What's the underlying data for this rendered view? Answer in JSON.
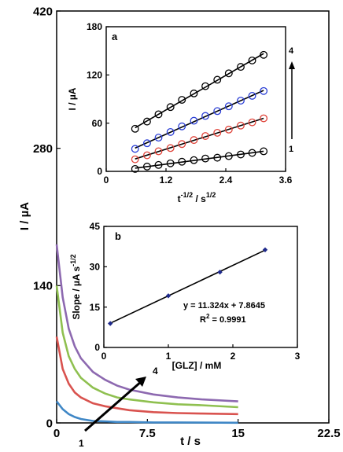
{
  "chart_data": [
    {
      "id": "main",
      "type": "line",
      "xlabel": "t / s",
      "ylabel": "I / µA",
      "xlim": [
        0,
        22.5
      ],
      "ylim": [
        0,
        420
      ],
      "xticks": [
        "0",
        "7.5",
        "15",
        "22.5"
      ],
      "yticks": [
        "0",
        "140",
        "280",
        "420"
      ],
      "x": [
        0,
        0.5,
        1,
        1.5,
        2,
        3,
        4,
        5,
        6,
        8,
        10,
        12,
        15
      ],
      "series": [
        {
          "label": "1",
          "color": "#3f87c6",
          "values": [
            22,
            14,
            9,
            6,
            4,
            2,
            1.5,
            1,
            1,
            0.5,
            0.5,
            0.3,
            0.2
          ]
        },
        {
          "label": "",
          "color": "#d9534f",
          "values": [
            88,
            55,
            40,
            31,
            26,
            20,
            17,
            15,
            13,
            11,
            10,
            9.5,
            9
          ]
        },
        {
          "label": "",
          "color": "#8fc050",
          "values": [
            140,
            92,
            68,
            55,
            46,
            36,
            30,
            26,
            24,
            21,
            19,
            18,
            16
          ]
        },
        {
          "label": "4",
          "color": "#8d69b0",
          "values": [
            182,
            128,
            96,
            78,
            66,
            52,
            44,
            38,
            34,
            29,
            26,
            24,
            22
          ]
        }
      ],
      "arrow_labels": [
        "1",
        "4"
      ]
    },
    {
      "id": "inset-a",
      "panel_label": "a",
      "type": "scatter",
      "xlabel_main": "t",
      "xlabel_exp": "-1/2",
      "xlabel_mid": " / s",
      "xlabel_exp2": "1/2",
      "ylabel": "I / µA",
      "xlim": [
        0,
        3.6
      ],
      "ylim": [
        0,
        180
      ],
      "xticks": [
        "0",
        "1.2",
        "2.4",
        "3.6"
      ],
      "yticks": [
        "0",
        "60",
        "120",
        "180"
      ],
      "x": [
        0.58,
        0.82,
        1.05,
        1.29,
        1.52,
        1.76,
        1.99,
        2.23,
        2.46,
        2.7,
        2.93,
        3.16
      ],
      "series": [
        {
          "label": "1",
          "color": "#000000",
          "values": [
            3,
            6,
            8,
            10,
            12,
            14,
            16,
            17,
            19,
            21,
            23,
            25
          ]
        },
        {
          "label": "",
          "color": "#e0443a",
          "values": [
            15,
            20,
            25,
            29,
            34,
            39,
            44,
            48,
            52,
            57,
            61,
            66
          ]
        },
        {
          "label": "",
          "color": "#2b3fd6",
          "values": [
            28,
            35,
            42,
            49,
            56,
            63,
            69,
            75,
            81,
            88,
            94,
            100
          ]
        },
        {
          "label": "4",
          "color": "#000000",
          "values": [
            53,
            62,
            71,
            80,
            89,
            97,
            106,
            114,
            122,
            130,
            138,
            145
          ]
        }
      ],
      "arrow_labels": [
        "1",
        "4"
      ]
    },
    {
      "id": "inset-b",
      "panel_label": "b",
      "type": "scatter",
      "xlabel": "[GLZ] / mM",
      "ylabel_main": "Slope / µA s",
      "ylabel_exp": "-1/2",
      "xlim": [
        0,
        3
      ],
      "ylim": [
        0,
        45
      ],
      "xticks": [
        "0",
        "1",
        "2",
        "3"
      ],
      "yticks": [
        "0",
        "15",
        "30",
        "45"
      ],
      "x": [
        0.1,
        1.0,
        1.8,
        2.5
      ],
      "values": [
        8.9,
        19.2,
        28.0,
        36.3
      ],
      "fit": {
        "slope": 11.324,
        "intercept": 7.8645
      },
      "equation": "y = 11.324x + 7.8645",
      "r2_main": "R",
      "r2_exp": "2",
      "r2_value": " = 0.9991",
      "marker_color": "#1f2a8c"
    }
  ]
}
